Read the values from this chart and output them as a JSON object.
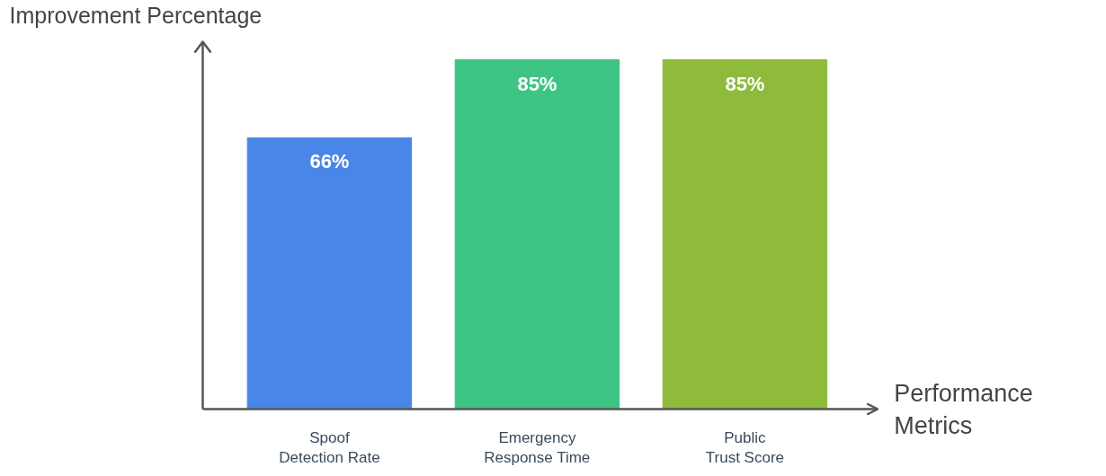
{
  "chart_data": {
    "type": "bar",
    "xlabel": "Performance Metrics",
    "ylabel": "Improvement Percentage",
    "categories": [
      "Spoof Detection Rate",
      "Emergency Response Time",
      "Public Trust Score"
    ],
    "values": [
      66,
      85,
      85
    ],
    "colors": [
      "#4a86e8",
      "#3ec584",
      "#8fba3c"
    ],
    "value_labels": [
      "66%",
      "85%",
      "85%"
    ],
    "grid": false
  }
}
